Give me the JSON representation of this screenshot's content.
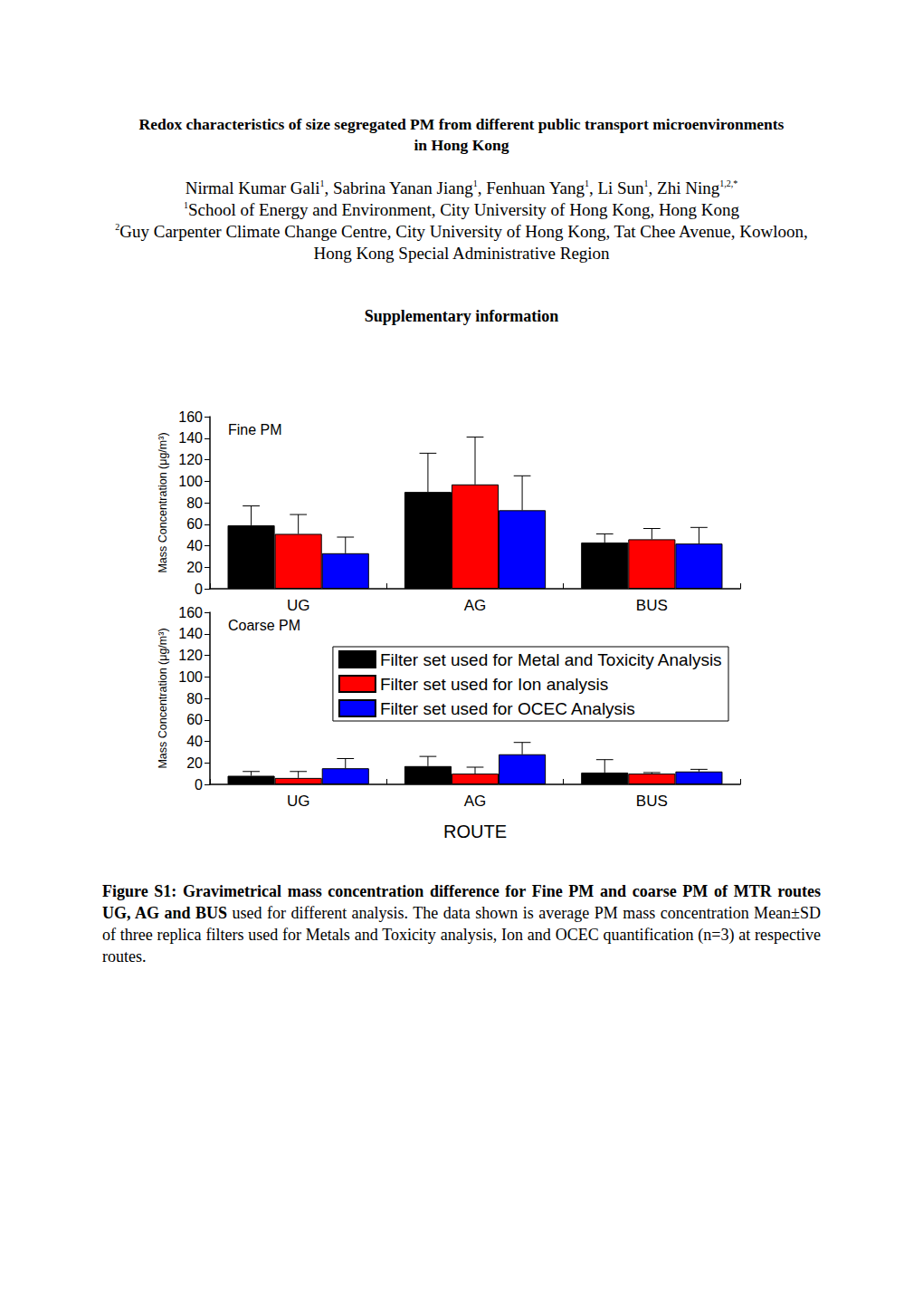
{
  "document": {
    "title": "Redox characteristics of size segregated PM from different public transport microenvironments in Hong Kong",
    "authors": [
      {
        "name": "Nirmal Kumar Gali",
        "sup": "1"
      },
      {
        "name": "Sabrina Yanan Jiang",
        "sup": "1"
      },
      {
        "name": "Fenhuan Yang",
        "sup": "1"
      },
      {
        "name": "Li Sun",
        "sup": "1"
      },
      {
        "name": "Zhi Ning",
        "sup": "1,2,*"
      }
    ],
    "affiliations": [
      {
        "mark": "1",
        "text": "School of Energy and Environment, City University of Hong Kong, Hong Kong"
      },
      {
        "mark": "2",
        "text": "Guy Carpenter Climate Change Centre, City University of Hong Kong, Tat Chee Avenue, Kowloon, Hong Kong Special Administrative Region"
      }
    ],
    "section": "Supplementary information",
    "caption": {
      "bold": "Figure S1: Gravimetrical mass concentration difference for Fine PM and coarse PM of MTR routes UG, AG and BUS",
      "text": " used for different analysis. The data shown is average PM mass concentration Mean±SD of three replica filters used for Metals and Toxicity analysis, Ion and OCEC quantification (n=3) at respective routes."
    }
  },
  "chart_data": [
    {
      "type": "bar",
      "title": "Fine PM",
      "categories": [
        "UG",
        "AG",
        "BUS"
      ],
      "ylabel": "Mass Concentration (μg/m³)",
      "ylim": [
        0,
        160
      ],
      "yticks": [
        0,
        20,
        40,
        60,
        80,
        100,
        120,
        140,
        160
      ],
      "grid": false,
      "series": [
        {
          "name": "Filter set used for Metal and Toxicity Analysis",
          "color": "#000000",
          "values": [
            59,
            90,
            43
          ],
          "errors": [
            18,
            36,
            8
          ]
        },
        {
          "name": "Filter set used for Ion analysis",
          "color": "#ff0000",
          "values": [
            51,
            97,
            46
          ],
          "errors": [
            18,
            44,
            10
          ]
        },
        {
          "name": "Filter set used for OCEC Analysis",
          "color": "#0000ff",
          "values": [
            33,
            73,
            42
          ],
          "errors": [
            15,
            32,
            15
          ]
        }
      ]
    },
    {
      "type": "bar",
      "title": "Coarse PM",
      "categories": [
        "UG",
        "AG",
        "BUS"
      ],
      "xlabel": "ROUTE",
      "ylabel": "Mass Concentration (μg/m³)",
      "ylim": [
        0,
        160
      ],
      "yticks": [
        0,
        20,
        40,
        60,
        80,
        100,
        120,
        140,
        160
      ],
      "grid": false,
      "legend": "upper right",
      "series": [
        {
          "name": "Filter set used for Metal and Toxicity Analysis",
          "color": "#000000",
          "values": [
            8,
            17,
            11
          ],
          "errors": [
            4,
            9,
            12
          ]
        },
        {
          "name": "Filter set used for Ion analysis",
          "color": "#ff0000",
          "values": [
            6,
            10,
            10
          ],
          "errors": [
            6,
            6,
            1
          ]
        },
        {
          "name": "Filter set used for OCEC Analysis",
          "color": "#0000ff",
          "values": [
            15,
            28,
            12
          ],
          "errors": [
            9,
            11,
            2
          ]
        }
      ]
    }
  ]
}
